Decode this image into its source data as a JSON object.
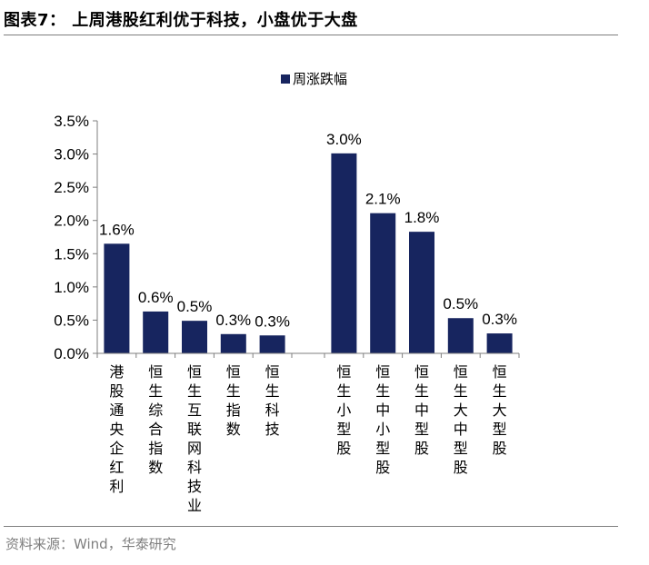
{
  "figure": {
    "title": "图表7： 上周港股红利优于科技，小盘优于大盘",
    "source": "资料来源：Wind，华泰研究"
  },
  "colors": {
    "bar": "#17255f",
    "axis": "#7f7f7f",
    "rule": "#7f7f7f"
  },
  "chart_data": {
    "type": "bar",
    "legend": {
      "label": "周涨跌幅",
      "position": "top-center"
    },
    "ylim": [
      0,
      3.5
    ],
    "yticks": [
      0,
      0.5,
      1.0,
      1.5,
      2.0,
      2.5,
      3.0,
      3.5
    ],
    "ytick_labels": [
      "0.0%",
      "0.5%",
      "1.0%",
      "1.5%",
      "2.0%",
      "2.5%",
      "3.0%",
      "3.5%"
    ],
    "grid": false,
    "groups": [
      {
        "categories": [
          "港股通央企红利",
          "恒生综合指数",
          "恒生互联网科技业",
          "恒生指数",
          "恒生科技"
        ],
        "values": [
          1.65,
          0.63,
          0.49,
          0.29,
          0.27
        ],
        "data_labels": [
          "1.6%",
          "0.6%",
          "0.5%",
          "0.3%",
          "0.3%"
        ]
      },
      {
        "categories": [
          "恒生小型股",
          "恒生中小型股",
          "恒生中型股",
          "恒生大中型股",
          "恒生大型股"
        ],
        "values": [
          3.01,
          2.11,
          1.83,
          0.53,
          0.3
        ],
        "data_labels": [
          "3.0%",
          "2.1%",
          "1.8%",
          "0.5%",
          "0.3%"
        ]
      }
    ]
  }
}
